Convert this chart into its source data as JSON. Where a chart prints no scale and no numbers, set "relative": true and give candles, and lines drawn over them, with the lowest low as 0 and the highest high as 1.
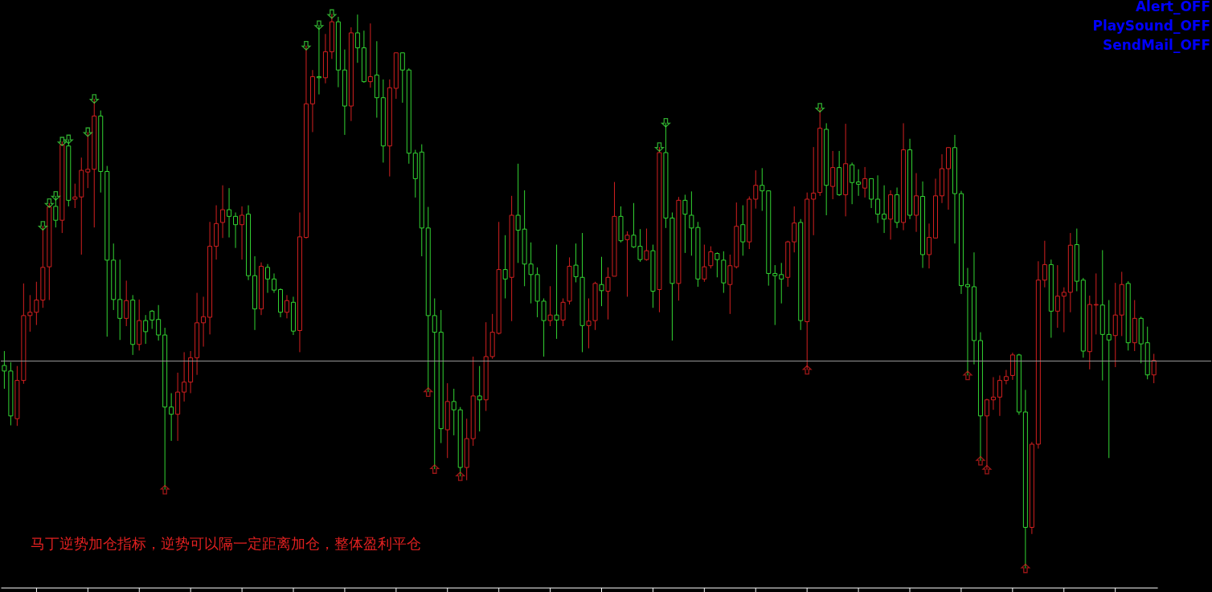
{
  "chart_data": {
    "type": "candlestick",
    "relative": true,
    "tick_labels": false,
    "grid": false,
    "categories": [
      null,
      null,
      null,
      null,
      null,
      null,
      null,
      null,
      null,
      null,
      null,
      null,
      null,
      null,
      null,
      null,
      null,
      null,
      null,
      null,
      null,
      null,
      null,
      null,
      null,
      null,
      null,
      null,
      null,
      null,
      null,
      null,
      null,
      null,
      null,
      null,
      null,
      null,
      null,
      null,
      null,
      null,
      null,
      null,
      null,
      null,
      null,
      null,
      null,
      null,
      null,
      null,
      null,
      null,
      null,
      null,
      null,
      null,
      null,
      null,
      null,
      null,
      null,
      null,
      null,
      null,
      null,
      null,
      null,
      null,
      null,
      null,
      null,
      null,
      null,
      null,
      null,
      null,
      null,
      null,
      null,
      null,
      null,
      null,
      null,
      null,
      null,
      null,
      null,
      null,
      null,
      null,
      null,
      null,
      null,
      null,
      null,
      null,
      null,
      null,
      null,
      null,
      null,
      null,
      null,
      null,
      null,
      null,
      null,
      null,
      null,
      null,
      null,
      null,
      null,
      null,
      null,
      null,
      null,
      null,
      null,
      null,
      null,
      null,
      null,
      null,
      null,
      null,
      null,
      null,
      null,
      null,
      null,
      null,
      null,
      null,
      null,
      null,
      null,
      null,
      null,
      null,
      null,
      null,
      null,
      null,
      null,
      null,
      null,
      null,
      null,
      null,
      null,
      null,
      null,
      null,
      null,
      null,
      null,
      null,
      null,
      null,
      null,
      null,
      null,
      null,
      null,
      null,
      null,
      null,
      null,
      null,
      null,
      null,
      null,
      null,
      null,
      null,
      null,
      null
    ],
    "ohlc": [
      [
        0.366,
        0.392,
        0.324,
        0.356
      ],
      [
        0.356,
        0.372,
        0.258,
        0.275
      ],
      [
        0.27,
        0.365,
        0.257,
        0.339
      ],
      [
        0.339,
        0.514,
        0.333,
        0.456
      ],
      [
        0.456,
        0.493,
        0.427,
        0.462
      ],
      [
        0.462,
        0.517,
        0.439,
        0.484
      ],
      [
        0.484,
        0.618,
        0.47,
        0.543
      ],
      [
        0.544,
        0.659,
        0.484,
        0.652
      ],
      [
        0.653,
        0.672,
        0.615,
        0.628
      ],
      [
        0.628,
        0.77,
        0.605,
        0.764
      ],
      [
        0.762,
        0.774,
        0.653,
        0.664
      ],
      [
        0.666,
        0.694,
        0.65,
        0.67
      ],
      [
        0.67,
        0.741,
        0.566,
        0.718
      ],
      [
        0.715,
        0.787,
        0.686,
        0.72
      ],
      [
        0.72,
        0.847,
        0.615,
        0.816
      ],
      [
        0.816,
        0.826,
        0.678,
        0.716
      ],
      [
        0.716,
        0.726,
        0.418,
        0.556
      ],
      [
        0.556,
        0.586,
        0.466,
        0.485
      ],
      [
        0.485,
        0.557,
        0.412,
        0.451
      ],
      [
        0.451,
        0.519,
        0.437,
        0.483
      ],
      [
        0.484,
        0.493,
        0.385,
        0.404
      ],
      [
        0.404,
        0.485,
        0.393,
        0.447
      ],
      [
        0.447,
        0.457,
        0.405,
        0.427
      ],
      [
        0.464,
        0.466,
        0.432,
        0.448
      ],
      [
        0.449,
        0.475,
        0.411,
        0.421
      ],
      [
        0.421,
        0.434,
        0.142,
        0.291
      ],
      [
        0.291,
        0.316,
        0.23,
        0.278
      ],
      [
        0.278,
        0.353,
        0.23,
        0.318
      ],
      [
        0.318,
        0.39,
        0.301,
        0.336
      ],
      [
        0.336,
        0.392,
        0.316,
        0.38
      ],
      [
        0.38,
        0.497,
        0.349,
        0.443
      ],
      [
        0.443,
        0.49,
        0.4,
        0.454
      ],
      [
        0.453,
        0.625,
        0.422,
        0.581
      ],
      [
        0.581,
        0.655,
        0.557,
        0.622
      ],
      [
        0.624,
        0.691,
        0.596,
        0.647
      ],
      [
        0.647,
        0.686,
        0.597,
        0.635
      ],
      [
        0.635,
        0.642,
        0.578,
        0.62
      ],
      [
        0.62,
        0.653,
        0.557,
        0.637
      ],
      [
        0.639,
        0.655,
        0.52,
        0.528
      ],
      [
        0.528,
        0.563,
        0.43,
        0.468
      ],
      [
        0.468,
        0.552,
        0.457,
        0.545
      ],
      [
        0.543,
        0.549,
        0.497,
        0.522
      ],
      [
        0.522,
        0.532,
        0.497,
        0.502
      ],
      [
        0.503,
        0.505,
        0.453,
        0.462
      ],
      [
        0.462,
        0.493,
        0.451,
        0.483
      ],
      [
        0.48,
        0.49,
        0.421,
        0.428
      ],
      [
        0.429,
        0.642,
        0.39,
        0.598
      ],
      [
        0.597,
        0.943,
        0.595,
        0.838
      ],
      [
        0.838,
        0.899,
        0.787,
        0.887
      ],
      [
        0.887,
        0.98,
        0.855,
        0.885
      ],
      [
        0.885,
        0.964,
        0.875,
        0.932
      ],
      [
        0.932,
        1.0,
        0.919,
        0.986
      ],
      [
        0.986,
        0.995,
        0.868,
        0.899
      ],
      [
        0.899,
        0.936,
        0.782,
        0.834
      ],
      [
        0.834,
        0.976,
        0.807,
        0.966
      ],
      [
        0.966,
        0.999,
        0.912,
        0.939
      ],
      [
        0.939,
        0.97,
        0.876,
        0.878
      ],
      [
        0.878,
        0.983,
        0.867,
        0.887
      ],
      [
        0.89,
        0.951,
        0.813,
        0.849
      ],
      [
        0.849,
        0.882,
        0.732,
        0.762
      ],
      [
        0.762,
        0.882,
        0.707,
        0.867
      ],
      [
        0.866,
        0.93,
        0.847,
        0.93
      ],
      [
        0.93,
        0.93,
        0.84,
        0.899
      ],
      [
        0.899,
        0.902,
        0.73,
        0.749
      ],
      [
        0.749,
        0.755,
        0.669,
        0.703
      ],
      [
        0.751,
        0.765,
        0.563,
        0.614
      ],
      [
        0.614,
        0.652,
        0.318,
        0.456
      ],
      [
        0.456,
        0.487,
        0.179,
        0.426
      ],
      [
        0.426,
        0.466,
        0.226,
        0.252
      ],
      [
        0.25,
        0.334,
        0.199,
        0.301
      ],
      [
        0.301,
        0.324,
        0.24,
        0.286
      ],
      [
        0.286,
        0.291,
        0.166,
        0.182
      ],
      [
        0.182,
        0.27,
        0.159,
        0.234
      ],
      [
        0.234,
        0.382,
        0.221,
        0.311
      ],
      [
        0.311,
        0.365,
        0.247,
        0.304
      ],
      [
        0.304,
        0.444,
        0.284,
        0.382
      ],
      [
        0.382,
        0.459,
        0.378,
        0.426
      ],
      [
        0.424,
        0.625,
        0.422,
        0.539
      ],
      [
        0.539,
        0.601,
        0.487,
        0.522
      ],
      [
        0.525,
        0.672,
        0.446,
        0.637
      ],
      [
        0.637,
        0.73,
        0.551,
        0.61
      ],
      [
        0.612,
        0.682,
        0.509,
        0.549
      ],
      [
        0.549,
        0.588,
        0.478,
        0.53
      ],
      [
        0.53,
        0.543,
        0.453,
        0.482
      ],
      [
        0.482,
        0.487,
        0.382,
        0.447
      ],
      [
        0.447,
        0.509,
        0.437,
        0.457
      ],
      [
        0.457,
        0.584,
        0.414,
        0.448
      ],
      [
        0.448,
        0.487,
        0.437,
        0.48
      ],
      [
        0.482,
        0.561,
        0.476,
        0.545
      ],
      [
        0.547,
        0.586,
        0.516,
        0.526
      ],
      [
        0.525,
        0.605,
        0.39,
        0.438
      ],
      [
        0.438,
        0.487,
        0.397,
        0.446
      ],
      [
        0.447,
        0.517,
        0.43,
        0.514
      ],
      [
        0.512,
        0.562,
        0.473,
        0.501
      ],
      [
        0.5,
        0.543,
        0.449,
        0.525
      ],
      [
        0.527,
        0.697,
        0.527,
        0.635
      ],
      [
        0.635,
        0.653,
        0.588,
        0.591
      ],
      [
        0.593,
        0.608,
        0.49,
        0.601
      ],
      [
        0.601,
        0.659,
        0.578,
        0.58
      ],
      [
        0.581,
        0.612,
        0.553,
        0.557
      ],
      [
        0.557,
        0.613,
        0.555,
        0.573
      ],
      [
        0.573,
        0.584,
        0.47,
        0.5
      ],
      [
        0.503,
        0.76,
        0.462,
        0.75
      ],
      [
        0.75,
        0.804,
        0.614,
        0.632
      ],
      [
        0.632,
        0.642,
        0.411,
        0.514
      ],
      [
        0.514,
        0.67,
        0.483,
        0.664
      ],
      [
        0.664,
        0.674,
        0.569,
        0.639
      ],
      [
        0.637,
        0.68,
        0.564,
        0.614
      ],
      [
        0.615,
        0.625,
        0.508,
        0.522
      ],
      [
        0.522,
        0.584,
        0.517,
        0.544
      ],
      [
        0.546,
        0.581,
        0.541,
        0.571
      ],
      [
        0.568,
        0.57,
        0.525,
        0.557
      ],
      [
        0.556,
        0.572,
        0.497,
        0.515
      ],
      [
        0.512,
        0.566,
        0.459,
        0.546
      ],
      [
        0.544,
        0.66,
        0.541,
        0.617
      ],
      [
        0.62,
        0.655,
        0.564,
        0.589
      ],
      [
        0.589,
        0.671,
        0.576,
        0.666
      ],
      [
        0.666,
        0.718,
        0.649,
        0.691
      ],
      [
        0.691,
        0.722,
        0.645,
        0.681
      ],
      [
        0.681,
        0.682,
        0.51,
        0.532
      ],
      [
        0.532,
        0.547,
        0.439,
        0.528
      ],
      [
        0.53,
        0.551,
        0.478,
        0.522
      ],
      [
        0.525,
        0.591,
        0.508,
        0.589
      ],
      [
        0.589,
        0.653,
        0.57,
        0.623
      ],
      [
        0.624,
        0.63,
        0.43,
        0.447
      ],
      [
        0.445,
        0.678,
        0.358,
        0.666
      ],
      [
        0.666,
        0.76,
        0.601,
        0.677
      ],
      [
        0.678,
        0.831,
        0.672,
        0.794
      ],
      [
        0.792,
        0.803,
        0.637,
        0.691
      ],
      [
        0.689,
        0.753,
        0.666,
        0.723
      ],
      [
        0.723,
        0.753,
        0.672,
        0.674
      ],
      [
        0.674,
        0.802,
        0.635,
        0.73
      ],
      [
        0.728,
        0.732,
        0.657,
        0.696
      ],
      [
        0.697,
        0.72,
        0.672,
        0.693
      ],
      [
        0.686,
        0.724,
        0.669,
        0.703
      ],
      [
        0.703,
        0.703,
        0.65,
        0.666
      ],
      [
        0.666,
        0.709,
        0.623,
        0.639
      ],
      [
        0.639,
        0.691,
        0.605,
        0.63
      ],
      [
        0.63,
        0.682,
        0.593,
        0.674
      ],
      [
        0.674,
        0.687,
        0.614,
        0.624
      ],
      [
        0.624,
        0.803,
        0.61,
        0.755
      ],
      [
        0.755,
        0.775,
        0.63,
        0.637
      ],
      [
        0.637,
        0.713,
        0.607,
        0.672
      ],
      [
        0.671,
        0.698,
        0.542,
        0.566
      ],
      [
        0.566,
        0.622,
        0.541,
        0.597
      ],
      [
        0.596,
        0.703,
        0.595,
        0.672
      ],
      [
        0.672,
        0.747,
        0.659,
        0.721
      ],
      [
        0.721,
        0.76,
        0.647,
        0.759
      ],
      [
        0.759,
        0.782,
        0.586,
        0.676
      ],
      [
        0.676,
        0.681,
        0.495,
        0.51
      ],
      [
        0.512,
        0.542,
        0.348,
        0.508
      ],
      [
        0.508,
        0.57,
        0.368,
        0.411
      ],
      [
        0.411,
        0.426,
        0.194,
        0.275
      ],
      [
        0.275,
        0.306,
        0.178,
        0.304
      ],
      [
        0.304,
        0.345,
        0.286,
        0.309
      ],
      [
        0.309,
        0.348,
        0.275,
        0.339
      ],
      [
        0.339,
        0.358,
        0.332,
        0.346
      ],
      [
        0.348,
        0.389,
        0.34,
        0.385
      ],
      [
        0.385,
        0.387,
        0.277,
        0.282
      ],
      [
        0.282,
        0.322,
        0,
        0.074
      ],
      [
        0.074,
        0.228,
        0.062,
        0.224
      ],
      [
        0.224,
        0.554,
        0.216,
        0.52
      ],
      [
        0.52,
        0.591,
        0.507,
        0.548
      ],
      [
        0.548,
        0.557,
        0.416,
        0.464
      ],
      [
        0.464,
        0.547,
        0.434,
        0.491
      ],
      [
        0.491,
        0.507,
        0.426,
        0.498
      ],
      [
        0.498,
        0.605,
        0.462,
        0.583
      ],
      [
        0.584,
        0.613,
        0.5,
        0.518
      ],
      [
        0.52,
        0.524,
        0.38,
        0.392
      ],
      [
        0.391,
        0.492,
        0.359,
        0.476
      ],
      [
        0.475,
        0.532,
        0.422,
        0.476
      ],
      [
        0.475,
        0.574,
        0.339,
        0.422
      ],
      [
        0.422,
        0.484,
        0.199,
        0.412
      ],
      [
        0.42,
        0.515,
        0.363,
        0.457
      ],
      [
        0.457,
        0.535,
        0.419,
        0.512
      ],
      [
        0.514,
        0.518,
        0.393,
        0.407
      ],
      [
        0.407,
        0.484,
        0.392,
        0.451
      ],
      [
        0.451,
        0.454,
        0.37,
        0.405
      ],
      [
        0.407,
        0.436,
        0.341,
        0.349
      ],
      [
        0.349,
        0.387,
        0.334,
        0.375
      ]
    ],
    "colors": [
      "#33d633",
      "#33d633",
      "#d42020",
      "#d42020",
      "#d42020",
      "#d42020",
      "#d42020",
      "#d42020",
      "#33d633",
      "#d42020",
      "#33d633",
      "#d42020",
      "#d42020",
      "#d42020",
      "#d42020",
      "#33d633",
      "#33d633",
      "#33d633",
      "#33d633",
      "#d42020",
      "#33d633",
      "#d42020",
      "#33d633",
      "#33d633",
      "#33d633",
      "#33d633",
      "#33d633",
      "#d42020",
      "#d42020",
      "#d42020",
      "#d42020",
      "#d42020",
      "#d42020",
      "#d42020",
      "#d42020",
      "#33d633",
      "#33d633",
      "#d42020",
      "#33d633",
      "#33d633",
      "#d42020",
      "#33d633",
      "#33d633",
      "#33d633",
      "#d42020",
      "#33d633",
      "#d42020",
      "#d42020",
      "#d42020",
      "#33d633",
      "#d42020",
      "#d42020",
      "#33d633",
      "#33d633",
      "#d42020",
      "#33d633",
      "#33d633",
      "#d42020",
      "#33d633",
      "#33d633",
      "#d42020",
      "#d42020",
      "#33d633",
      "#33d633",
      "#33d633",
      "#33d633",
      "#33d633",
      "#33d633",
      "#33d633",
      "#d42020",
      "#33d633",
      "#33d633",
      "#d42020",
      "#d42020",
      "#33d633",
      "#d42020",
      "#d42020",
      "#d42020",
      "#33d633",
      "#d42020",
      "#33d633",
      "#33d633",
      "#33d633",
      "#33d633",
      "#33d633",
      "#d42020",
      "#33d633",
      "#d42020",
      "#d42020",
      "#33d633",
      "#33d633",
      "#d42020",
      "#d42020",
      "#33d633",
      "#d42020",
      "#d42020",
      "#33d633",
      "#d42020",
      "#33d633",
      "#33d633",
      "#d42020",
      "#33d633",
      "#d42020",
      "#33d633",
      "#33d633",
      "#d42020",
      "#33d633",
      "#33d633",
      "#33d633",
      "#d42020",
      "#d42020",
      "#33d633",
      "#33d633",
      "#d42020",
      "#d42020",
      "#33d633",
      "#d42020",
      "#d42020",
      "#33d633",
      "#33d633",
      "#33d633",
      "#33d633",
      "#d42020",
      "#d42020",
      "#33d633",
      "#d42020",
      "#d42020",
      "#d42020",
      "#33d633",
      "#d42020",
      "#33d633",
      "#d42020",
      "#33d633",
      "#33d633",
      "#d42020",
      "#33d633",
      "#33d633",
      "#33d633",
      "#d42020",
      "#33d633",
      "#d42020",
      "#33d633",
      "#d42020",
      "#33d633",
      "#d42020",
      "#d42020",
      "#d42020",
      "#d42020",
      "#33d633",
      "#33d633",
      "#33d633",
      "#33d633",
      "#33d633",
      "#d42020",
      "#d42020",
      "#d42020",
      "#d42020",
      "#d42020",
      "#33d633",
      "#33d633",
      "#d42020",
      "#d42020",
      "#d42020",
      "#33d633",
      "#d42020",
      "#d42020",
      "#d42020",
      "#33d633",
      "#33d633",
      "#d42020",
      "#d42020",
      "#33d633",
      "#33d633",
      "#d42020",
      "#d42020",
      "#33d633",
      "#d42020",
      "#33d633",
      "#33d633",
      "#d42020"
    ],
    "series": [
      {
        "type": "scatter",
        "color": "#44ee44",
        "values": [
          null,
          null,
          null,
          null,
          null,
          null,
          0.618,
          0.659,
          0.672,
          0.77,
          0.774,
          null,
          null,
          0.787,
          0.847,
          null,
          null,
          null,
          null,
          null,
          null,
          null,
          null,
          null,
          null,
          null,
          null,
          null,
          null,
          null,
          null,
          null,
          null,
          null,
          null,
          null,
          null,
          null,
          null,
          null,
          null,
          null,
          null,
          null,
          null,
          null,
          null,
          0.943,
          null,
          0.98,
          null,
          1.0,
          null,
          null,
          null,
          null,
          null,
          null,
          null,
          null,
          null,
          null,
          null,
          null,
          null,
          null,
          null,
          null,
          null,
          null,
          null,
          null,
          null,
          null,
          null,
          null,
          null,
          null,
          null,
          null,
          null,
          null,
          null,
          null,
          null,
          null,
          null,
          null,
          null,
          null,
          null,
          null,
          null,
          null,
          null,
          null,
          null,
          null,
          null,
          null,
          null,
          null,
          0.76,
          0.804,
          null,
          null,
          null,
          null,
          null,
          null,
          null,
          null,
          null,
          null,
          null,
          null,
          null,
          null,
          null,
          null,
          null,
          null,
          null,
          null,
          null,
          null,
          null,
          0.831,
          null,
          null,
          null,
          null,
          null,
          null,
          null,
          null,
          null,
          null,
          null,
          null,
          null,
          null,
          null,
          null,
          null,
          null,
          null,
          null,
          null,
          null,
          null,
          null,
          null,
          null,
          null,
          null,
          null,
          null,
          null,
          null,
          null,
          null,
          null,
          null,
          null,
          null,
          null,
          null,
          null,
          null,
          null,
          null,
          null,
          null,
          null,
          null,
          null,
          null,
          null,
          null
        ]
      },
      {
        "type": "scatter",
        "color": "#dd2222",
        "values": [
          null,
          null,
          null,
          null,
          null,
          null,
          null,
          null,
          null,
          null,
          null,
          null,
          null,
          null,
          null,
          null,
          null,
          null,
          null,
          null,
          null,
          null,
          null,
          null,
          null,
          0.142,
          null,
          null,
          null,
          null,
          null,
          null,
          null,
          null,
          null,
          null,
          null,
          null,
          null,
          null,
          null,
          null,
          null,
          null,
          null,
          null,
          null,
          null,
          null,
          null,
          null,
          null,
          null,
          null,
          null,
          null,
          null,
          null,
          null,
          null,
          null,
          null,
          null,
          null,
          null,
          null,
          0.318,
          0.179,
          null,
          null,
          null,
          0.166,
          null,
          null,
          null,
          null,
          null,
          null,
          null,
          null,
          null,
          null,
          null,
          null,
          null,
          null,
          null,
          null,
          null,
          null,
          null,
          null,
          null,
          null,
          null,
          null,
          null,
          null,
          null,
          null,
          null,
          null,
          null,
          null,
          null,
          null,
          null,
          null,
          null,
          null,
          null,
          null,
          null,
          null,
          null,
          null,
          null,
          null,
          null,
          null,
          null,
          null,
          null,
          null,
          null,
          0.358,
          null,
          null,
          null,
          null,
          null,
          null,
          null,
          null,
          null,
          null,
          null,
          null,
          null,
          null,
          null,
          null,
          null,
          null,
          null,
          null,
          null,
          null,
          null,
          null,
          0.348,
          null,
          0.194,
          0.178,
          null,
          null,
          null,
          null,
          null,
          0,
          null,
          null,
          null,
          null,
          null,
          null,
          null,
          null,
          null,
          null,
          null,
          null,
          null,
          null,
          null,
          null,
          null,
          null,
          null,
          null
        ]
      }
    ],
    "ref_lines": [
      {
        "axis": "y",
        "value": 0.374,
        "color": "#9a9a9a"
      }
    ],
    "annotations": [
      "马丁逆势加仓指标，逆势可以隔一定距离加仓，整体盈利平仓",
      "Alert_OFF",
      "PlaySound_OFF",
      "SendMail_OFF"
    ]
  }
}
